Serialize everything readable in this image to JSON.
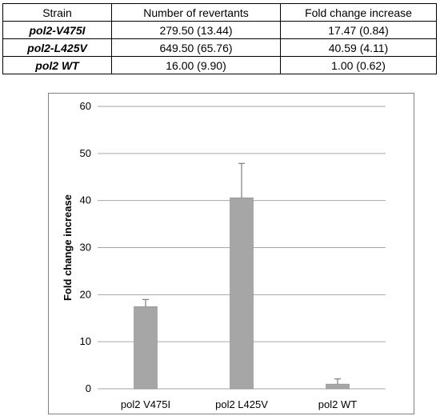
{
  "table": {
    "headers": [
      "Strain",
      "Number of revertants",
      "Fold change increase"
    ],
    "rows": [
      {
        "strain": "pol2-V475I",
        "revertants": "279.50 (13.44)",
        "fold": "17.47 (0.84)"
      },
      {
        "strain": "pol2-L425V",
        "revertants": "649.50 (65.76)",
        "fold": "40.59 (4.11)"
      },
      {
        "strain": "pol2 WT",
        "revertants": "16.00 (9.90)",
        "fold": "1.00 (0.62)"
      }
    ]
  },
  "chart_data": {
    "type": "bar",
    "categories": [
      "pol2 V475I",
      "pol2 L425V",
      "pol2 WT"
    ],
    "values": [
      17.47,
      40.59,
      1.0
    ],
    "error": [
      1.5,
      7.3,
      1.1
    ],
    "title": "",
    "xlabel": "",
    "ylabel": "Fold change increase",
    "ylim": [
      0,
      60
    ],
    "yticks": [
      0,
      10,
      20,
      30,
      40,
      50,
      60
    ],
    "grid": true,
    "legend": "none",
    "colors": {
      "bar": "#a6a6a6",
      "bar_edge": "#8c8c8c",
      "error_bar": "#7f7f7f",
      "grid": "#a6a6a6"
    }
  }
}
